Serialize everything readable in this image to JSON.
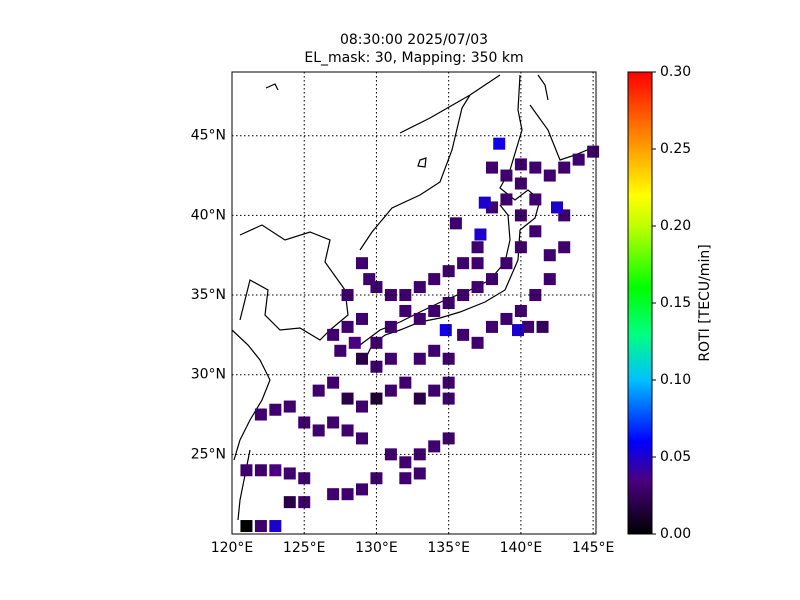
{
  "chart_data": {
    "type": "map-grid",
    "title": "08:30:00 2025/07/03",
    "subtitle": "EL_mask: 30, Mapping: 350 km",
    "colorbar_label": "ROTI [TECU/min]",
    "xlim": [
      120,
      145.2
    ],
    "ylim": [
      20,
      49
    ],
    "xticks": [
      {
        "value": 120,
        "label": "120°E"
      },
      {
        "value": 125,
        "label": "125°E"
      },
      {
        "value": 130,
        "label": "130°E"
      },
      {
        "value": 135,
        "label": "135°E"
      },
      {
        "value": 140,
        "label": "140°E"
      },
      {
        "value": 145,
        "label": "145°E"
      }
    ],
    "yticks": [
      {
        "value": 25,
        "label": "25°N"
      },
      {
        "value": 30,
        "label": "30°N"
      },
      {
        "value": 35,
        "label": "35°N"
      },
      {
        "value": 40,
        "label": "40°N"
      },
      {
        "value": 45,
        "label": "45°N"
      }
    ],
    "clim": [
      0,
      0.3
    ],
    "cticks": [
      {
        "value": 0,
        "label": "0.00"
      },
      {
        "value": 0.05,
        "label": "0.05"
      },
      {
        "value": 0.1,
        "label": "0.10"
      },
      {
        "value": 0.15,
        "label": "0.15"
      },
      {
        "value": 0.2,
        "label": "0.20"
      },
      {
        "value": 0.25,
        "label": "0.25"
      },
      {
        "value": 0.3,
        "label": "0.30"
      }
    ],
    "colormap": [
      [
        0,
        "#000000"
      ],
      [
        0.035,
        "#4a0080"
      ],
      [
        0.06,
        "#0000ff"
      ],
      [
        0.1,
        "#00c0ff"
      ],
      [
        0.13,
        "#00ff80"
      ],
      [
        0.16,
        "#00ff00"
      ],
      [
        0.2,
        "#c0ff00"
      ],
      [
        0.22,
        "#ffff00"
      ],
      [
        0.26,
        "#ff8000"
      ],
      [
        0.3,
        "#ff0000"
      ]
    ],
    "grid": true,
    "lon": [
      128,
      129,
      130,
      131,
      129,
      130,
      131,
      128.5,
      127.5,
      127,
      132,
      133,
      134,
      135,
      136,
      137,
      138,
      139,
      140,
      141,
      140,
      141,
      139,
      138,
      137,
      136,
      135,
      134,
      133,
      132,
      131,
      130,
      133,
      134,
      135,
      136,
      137,
      138,
      139,
      140,
      141,
      142,
      142,
      143,
      143,
      140.5,
      141.5,
      134.8,
      137.5,
      137.2,
      139.8,
      138.5,
      142.5,
      138,
      139,
      140,
      141,
      142,
      143,
      144,
      145,
      140,
      129,
      129.5,
      128,
      135.5,
      137,
      126,
      127,
      128,
      129,
      130,
      131,
      132,
      133,
      134,
      135,
      135,
      122,
      123,
      124,
      125,
      126,
      127,
      128,
      129,
      131,
      132,
      133,
      134,
      135,
      121,
      122,
      123,
      124,
      125,
      127,
      128,
      129,
      130,
      132,
      133,
      124,
      125,
      121,
      122,
      123
    ],
    "lat": [
      33,
      33.5,
      32,
      33,
      31,
      30.5,
      31,
      32,
      31.5,
      32.5,
      34,
      33.5,
      34,
      34.5,
      35,
      35.5,
      36,
      37,
      38,
      39,
      40,
      41,
      41,
      40.5,
      38,
      37,
      36.5,
      36,
      35.5,
      35,
      35,
      35.5,
      31,
      31.5,
      31,
      32.5,
      32,
      33,
      33.5,
      34,
      35,
      36,
      37.5,
      38,
      40,
      33,
      33,
      32.8,
      40.8,
      38.8,
      32.8,
      44.5,
      40.5,
      43,
      42.5,
      42,
      43,
      42.5,
      43,
      43.5,
      44,
      43.2,
      37,
      36,
      35,
      39.5,
      37,
      29,
      29.5,
      28.5,
      28,
      28.5,
      29,
      29.5,
      28.5,
      29,
      29.5,
      28.5,
      27.5,
      27.8,
      28,
      27,
      26.5,
      27,
      26.5,
      26,
      25,
      24.5,
      25,
      25.5,
      26,
      24,
      24,
      24,
      23.8,
      23.5,
      22.5,
      22.5,
      22.8,
      23.5,
      23.5,
      23.8,
      22,
      22,
      20.5,
      20.5,
      20.5
    ],
    "values": [
      0.03,
      0.03,
      0.03,
      0.03,
      0.02,
      0.03,
      0.03,
      0.035,
      0.03,
      0.03,
      0.03,
      0.03,
      0.03,
      0.03,
      0.03,
      0.03,
      0.03,
      0.03,
      0.03,
      0.03,
      0.03,
      0.03,
      0.03,
      0.03,
      0.03,
      0.03,
      0.03,
      0.03,
      0.03,
      0.03,
      0.03,
      0.03,
      0.03,
      0.03,
      0.03,
      0.03,
      0.03,
      0.03,
      0.03,
      0.03,
      0.03,
      0.03,
      0.03,
      0.03,
      0.03,
      0.03,
      0.025,
      0.055,
      0.05,
      0.05,
      0.05,
      0.055,
      0.05,
      0.03,
      0.03,
      0.03,
      0.03,
      0.03,
      0.03,
      0.03,
      0.03,
      0.03,
      0.03,
      0.03,
      0.03,
      0.03,
      0.03,
      0.03,
      0.03,
      0.02,
      0.03,
      0.015,
      0.03,
      0.03,
      0.02,
      0.03,
      0.03,
      0.03,
      0.03,
      0.03,
      0.03,
      0.03,
      0.03,
      0.03,
      0.03,
      0.03,
      0.03,
      0.03,
      0.03,
      0.03,
      0.03,
      0.03,
      0.03,
      0.035,
      0.03,
      0.03,
      0.03,
      0.03,
      0.03,
      0.03,
      0.03,
      0.03,
      0.02,
      0.03,
      0,
      0.03,
      0.05
    ]
  }
}
